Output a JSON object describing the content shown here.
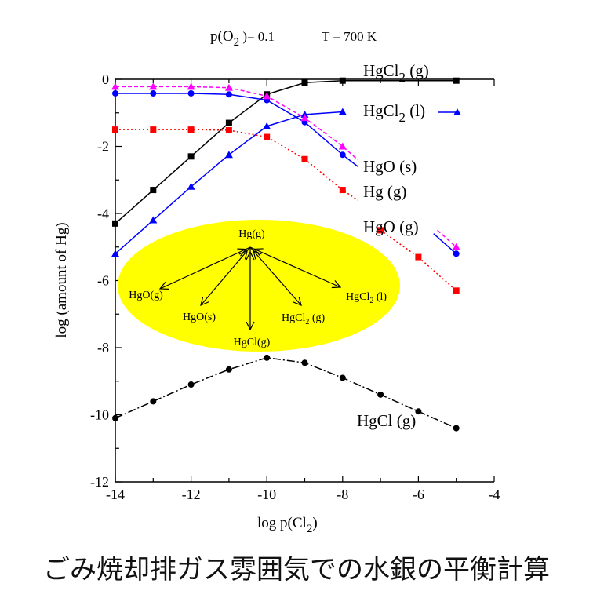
{
  "chart_data": {
    "type": "line",
    "params": {
      "po2": "p(O",
      "po2_sub": "2",
      "po2_tail": " )= 0.1",
      "temp": "T = 700 K"
    },
    "xlabel": {
      "text": "log p(Cl",
      "sub": "2",
      "tail": ")"
    },
    "ylabel": "log (amount of Hg)",
    "xlim": [
      -14,
      -4
    ],
    "ylim": [
      -12,
      0
    ],
    "xticks": [
      "-14",
      "-12",
      "-10",
      "-8",
      "-6",
      "-4"
    ],
    "yticks": [
      "0",
      "-2",
      "-4",
      "-6",
      "-8",
      "-10",
      "-12"
    ],
    "series": [
      {
        "key": "hgcl2g",
        "name_main": "HgCl",
        "name_sub": "2",
        "name_tail": " (g)",
        "color": "#000000",
        "dash": "",
        "marker": "square",
        "x": [
          -14,
          -13,
          -12,
          -11,
          -10,
          -9,
          -8,
          -5
        ],
        "y": [
          -4.3,
          -3.3,
          -2.3,
          -1.3,
          -0.45,
          -0.1,
          -0.04,
          -0.04
        ]
      },
      {
        "key": "hgcl2l",
        "name_main": "HgCl",
        "name_sub": "2",
        "name_tail": " (l)",
        "color": "#0000ff",
        "dash": "",
        "marker": "triangle",
        "x": [
          -14,
          -13,
          -12,
          -11,
          -10,
          -9,
          -8
        ],
        "y": [
          -5.2,
          -4.2,
          -3.2,
          -2.25,
          -1.4,
          -1.05,
          -0.97
        ]
      },
      {
        "key": "hgos",
        "name_main": "HgO (s)",
        "name_sub": "",
        "name_tail": "",
        "color": "#0000ff",
        "dash": "",
        "marker": "circle",
        "x": [
          -14,
          -13,
          -12,
          -11,
          -10,
          -9,
          -8,
          -7.6,
          -5.6,
          -5
        ],
        "y": [
          -0.42,
          -0.42,
          -0.42,
          -0.45,
          -0.62,
          -1.28,
          -2.25,
          -2.6,
          -4.6,
          -5.2
        ]
      },
      {
        "key": "hgg",
        "name_main": "Hg (g)",
        "name_sub": "",
        "name_tail": "",
        "color": "#ff0000",
        "dash": "2,3",
        "marker": "square",
        "x": [
          -14,
          -13,
          -12,
          -11,
          -10,
          -9,
          -8,
          -7.6,
          -7.0,
          -6,
          -5
        ],
        "y": [
          -1.5,
          -1.5,
          -1.5,
          -1.52,
          -1.72,
          -2.38,
          -3.3,
          -3.6,
          -4.5,
          -5.3,
          -6.3
        ]
      },
      {
        "key": "hgog",
        "name_main": "HgO (g)",
        "name_sub": "",
        "name_tail": "",
        "color": "#ff00ff",
        "dash": "5,3",
        "marker": "triangle",
        "x": [
          -14,
          -13,
          -12,
          -11,
          -10,
          -9,
          -8,
          -7.6,
          -5.5,
          -5
        ],
        "y": [
          -0.22,
          -0.22,
          -0.22,
          -0.25,
          -0.5,
          -1.15,
          -2.0,
          -2.4,
          -4.5,
          -5.0
        ]
      },
      {
        "key": "hgclg",
        "name_main": "HgCl (g)",
        "name_sub": "",
        "name_tail": "",
        "color": "#000000",
        "dash": "10,3,2,3",
        "marker": "circle",
        "x": [
          -14,
          -13,
          -12,
          -11,
          -10,
          -9,
          -8,
          -7,
          -6,
          -5
        ],
        "y": [
          -10.1,
          -9.6,
          -9.1,
          -8.65,
          -8.3,
          -8.45,
          -8.9,
          -9.4,
          -9.9,
          -10.4
        ]
      }
    ],
    "inset": {
      "center": "Hg(g)",
      "species": [
        "HgO(g)",
        "HgO(s)",
        "HgCl(g)",
        "HgCl",
        "2",
        " (g)",
        "HgCl",
        "2",
        " (l)"
      ]
    }
  },
  "caption": "ごみ焼却排ガス雰囲気での水銀の平衡計算"
}
